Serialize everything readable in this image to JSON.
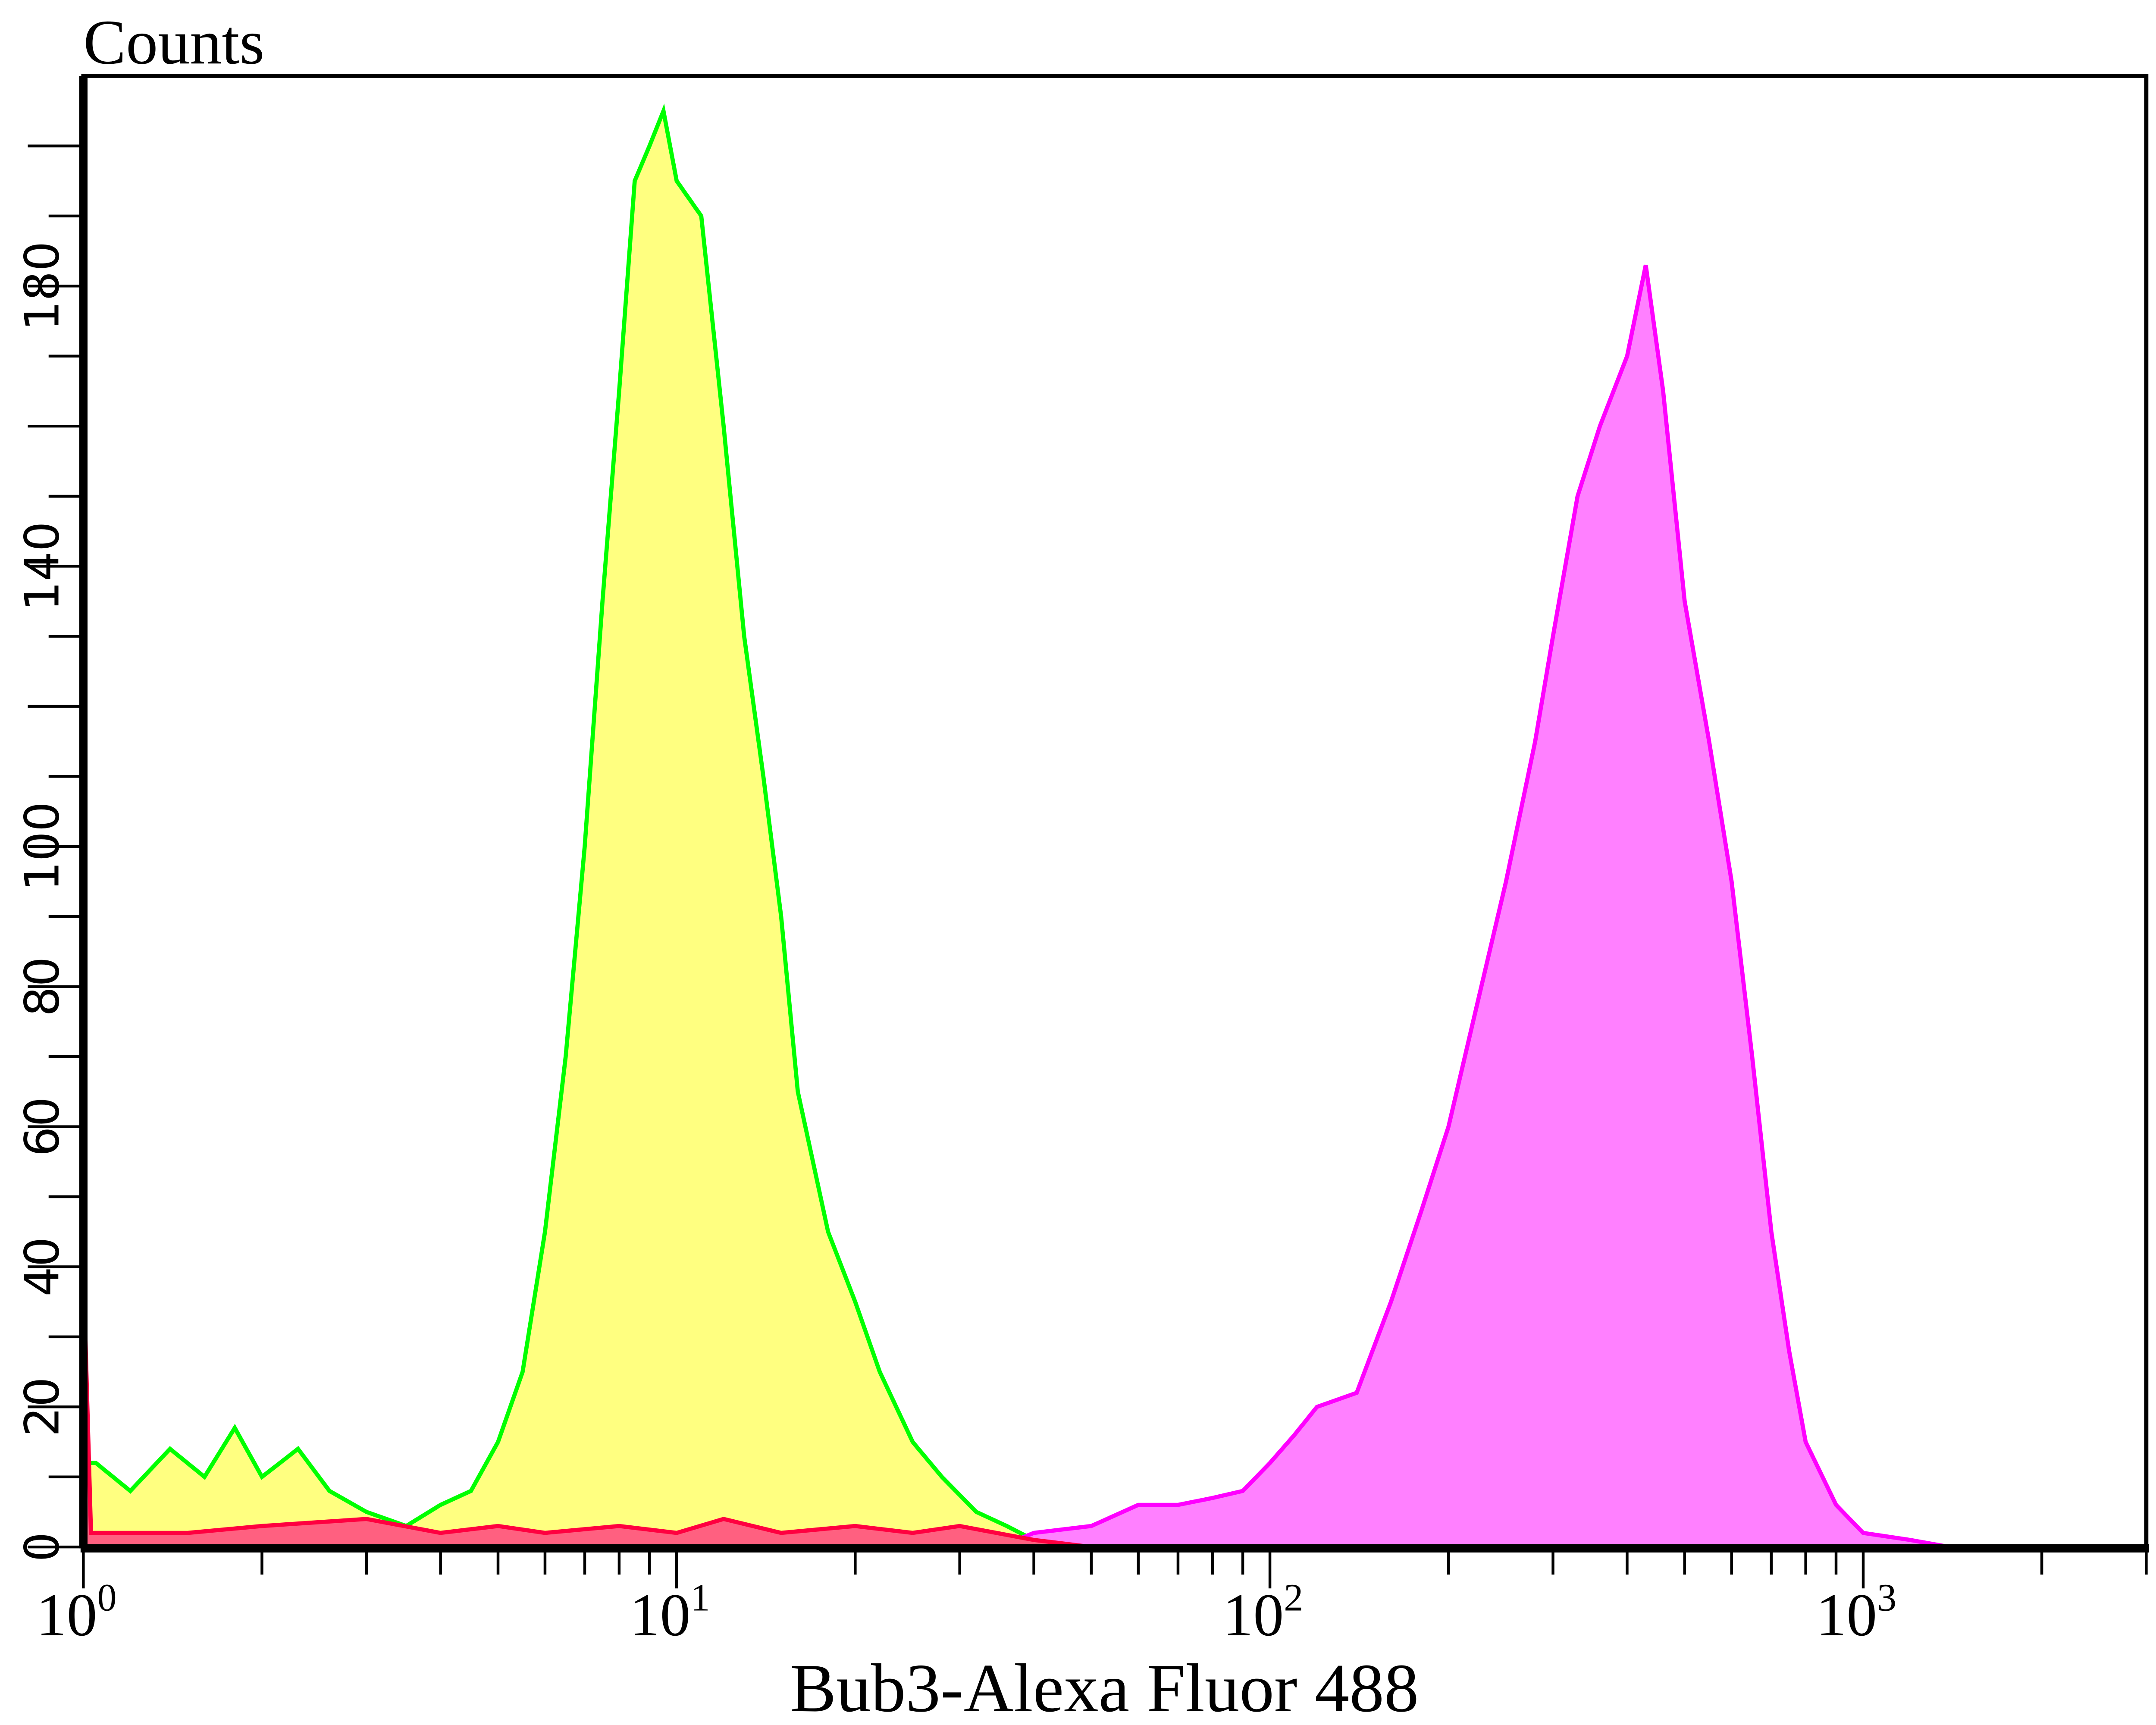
{
  "chart_data": {
    "type": "area",
    "ylabel": "Counts",
    "xlabel": "Bub3-Alexa Fluor 488",
    "x_scale": "log",
    "xlim": [
      1,
      3000
    ],
    "ylim": [
      0,
      210
    ],
    "grid": false,
    "x_ticks": [
      {
        "value": 1,
        "base": "10",
        "exp": "0"
      },
      {
        "value": 10,
        "base": "10",
        "exp": "1"
      },
      {
        "value": 100,
        "base": "10",
        "exp": "2"
      },
      {
        "value": 1000,
        "base": "10",
        "exp": "3"
      }
    ],
    "y_ticks": [
      "0",
      "20",
      "40",
      "60",
      "80",
      "100",
      "140",
      "180"
    ],
    "y_tick_values": [
      0,
      20,
      40,
      60,
      80,
      100,
      140,
      180
    ],
    "series": [
      {
        "fill": "#ffff80",
        "stroke": "#00ff00",
        "points": [
          [
            1,
            12
          ],
          [
            1.05,
            12
          ],
          [
            1.2,
            8
          ],
          [
            1.4,
            14
          ],
          [
            1.6,
            10
          ],
          [
            1.8,
            17
          ],
          [
            2.0,
            10
          ],
          [
            2.3,
            14
          ],
          [
            2.6,
            8
          ],
          [
            3.0,
            5
          ],
          [
            3.5,
            3
          ],
          [
            4.0,
            6
          ],
          [
            4.5,
            8
          ],
          [
            5.0,
            15
          ],
          [
            5.5,
            25
          ],
          [
            6.0,
            45
          ],
          [
            6.5,
            70
          ],
          [
            7.0,
            100
          ],
          [
            7.5,
            135
          ],
          [
            8.0,
            165
          ],
          [
            8.5,
            195
          ],
          [
            9.0,
            200
          ],
          [
            9.5,
            205
          ],
          [
            10,
            195
          ],
          [
            11,
            190
          ],
          [
            12,
            160
          ],
          [
            13,
            130
          ],
          [
            14,
            110
          ],
          [
            15,
            90
          ],
          [
            16,
            65
          ],
          [
            18,
            45
          ],
          [
            20,
            35
          ],
          [
            22,
            25
          ],
          [
            25,
            15
          ],
          [
            28,
            10
          ],
          [
            32,
            5
          ],
          [
            36,
            3
          ],
          [
            40,
            1
          ],
          [
            50,
            0
          ]
        ]
      },
      {
        "fill": "#ff80ff",
        "stroke": "#ff00ff",
        "points": [
          [
            35,
            0
          ],
          [
            40,
            2
          ],
          [
            50,
            3
          ],
          [
            60,
            6
          ],
          [
            70,
            6
          ],
          [
            80,
            7
          ],
          [
            90,
            8
          ],
          [
            100,
            12
          ],
          [
            110,
            16
          ],
          [
            120,
            20
          ],
          [
            140,
            22
          ],
          [
            160,
            35
          ],
          [
            180,
            48
          ],
          [
            200,
            60
          ],
          [
            220,
            75
          ],
          [
            250,
            95
          ],
          [
            280,
            115
          ],
          [
            300,
            130
          ],
          [
            330,
            150
          ],
          [
            360,
            160
          ],
          [
            400,
            170
          ],
          [
            430,
            183
          ],
          [
            460,
            165
          ],
          [
            500,
            135
          ],
          [
            550,
            115
          ],
          [
            600,
            95
          ],
          [
            650,
            70
          ],
          [
            700,
            45
          ],
          [
            750,
            28
          ],
          [
            800,
            15
          ],
          [
            900,
            6
          ],
          [
            1000,
            2
          ],
          [
            1200,
            1
          ],
          [
            1400,
            0
          ]
        ]
      },
      {
        "fill": "#ff6080",
        "stroke": "#ff0040",
        "points": [
          [
            1,
            40
          ],
          [
            1.03,
            2
          ],
          [
            1.5,
            2
          ],
          [
            2,
            3
          ],
          [
            3,
            4
          ],
          [
            4,
            2
          ],
          [
            5,
            3
          ],
          [
            6,
            2
          ],
          [
            8,
            3
          ],
          [
            10,
            2
          ],
          [
            12,
            4
          ],
          [
            15,
            2
          ],
          [
            20,
            3
          ],
          [
            25,
            2
          ],
          [
            30,
            3
          ],
          [
            40,
            1
          ],
          [
            50,
            0
          ]
        ]
      }
    ]
  }
}
